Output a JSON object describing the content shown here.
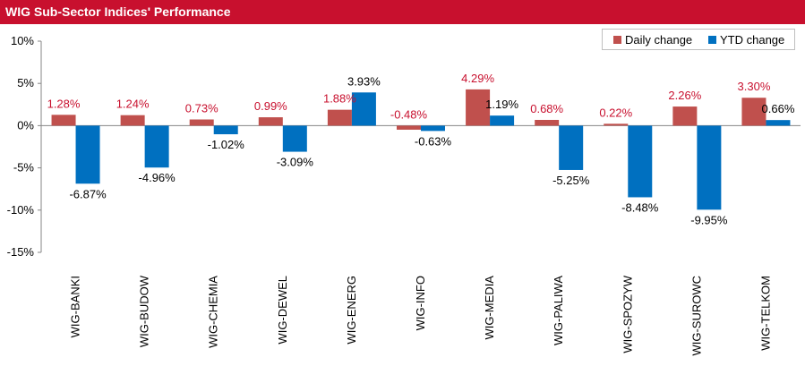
{
  "header": {
    "title": "WIG Sub-Sector Indices' Performance"
  },
  "colors": {
    "title_bg": "#c8102e",
    "daily": "#c0504d",
    "ytd": "#0070c0",
    "daily_label": "#c8102e",
    "ytd_label": "#000000"
  },
  "legend": {
    "daily": "Daily change",
    "ytd": "YTD change"
  },
  "chart_data": {
    "type": "bar",
    "title": "WIG Sub-Sector Indices' Performance",
    "categories": [
      "WIG-BANKI",
      "WIG-BUDOW",
      "WIG-CHEMIA",
      "WIG-DEWEL",
      "WIG-ENERG",
      "WIG-INFO",
      "WIG-MEDIA",
      "WIG-PALIWA",
      "WIG-SPOZYW",
      "WIG-SUROWC",
      "WIG-TELKOM"
    ],
    "series": [
      {
        "name": "Daily change",
        "values": [
          1.28,
          1.24,
          0.73,
          0.99,
          1.88,
          -0.48,
          4.29,
          0.68,
          0.22,
          2.26,
          3.3
        ],
        "labels": [
          "1.28%",
          "1.24%",
          "0.73%",
          "0.99%",
          "1.88%",
          "-0.48%",
          "4.29%",
          "0.68%",
          "0.22%",
          "2.26%",
          "3.30%"
        ]
      },
      {
        "name": "YTD change",
        "values": [
          -6.87,
          -4.96,
          -1.02,
          -3.09,
          3.93,
          -0.63,
          1.19,
          -5.25,
          -8.48,
          -9.95,
          0.66
        ],
        "labels": [
          "-6.87%",
          "-4.96%",
          "-1.02%",
          "-3.09%",
          "3.93%",
          "-0.63%",
          "1.19%",
          "-5.25%",
          "-8.48%",
          "-9.95%",
          "0.66%"
        ]
      }
    ],
    "ylim": [
      -15,
      10
    ],
    "yticks": [
      10,
      5,
      0,
      -5,
      -10,
      -15
    ],
    "ytick_labels": [
      "10%",
      "5%",
      "0%",
      "-5%",
      "-10%",
      "-15%"
    ],
    "xlabel": "",
    "ylabel": "",
    "grid": false,
    "legend_position": "top-right"
  }
}
